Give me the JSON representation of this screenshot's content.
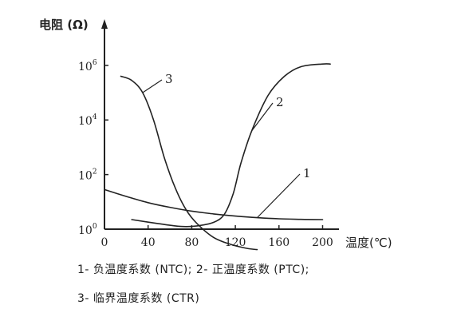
{
  "chart_data": {
    "type": "line",
    "ylabel": "电阻 (Ω)",
    "xlabel": "温度(℃)",
    "x_ticks": [
      0,
      40,
      80,
      120,
      160,
      200
    ],
    "y_ticks": [
      {
        "base": "10",
        "exp": "0"
      },
      {
        "base": "10",
        "exp": "2"
      },
      {
        "base": "10",
        "exp": "4"
      },
      {
        "base": "10",
        "exp": "6"
      }
    ],
    "xlim": [
      0,
      215
    ],
    "ylim_log10": [
      0,
      7.4
    ],
    "y_scale": "log",
    "grid": false,
    "series": [
      {
        "name": "1",
        "x": [
          0,
          20,
          40,
          60,
          80,
          100,
          120,
          140,
          160,
          180,
          200
        ],
        "log10_y": [
          1.45,
          1.2,
          0.97,
          0.8,
          0.66,
          0.56,
          0.48,
          0.42,
          0.38,
          0.36,
          0.35
        ]
      },
      {
        "name": "2",
        "x": [
          25,
          50,
          70,
          85,
          100,
          110,
          118,
          125,
          135,
          150,
          165,
          180,
          200,
          207
        ],
        "log10_y": [
          0.35,
          0.2,
          0.1,
          0.12,
          0.25,
          0.55,
          1.3,
          2.4,
          3.6,
          4.9,
          5.6,
          5.95,
          6.05,
          6.05
        ]
      },
      {
        "name": "3",
        "x": [
          15,
          25,
          35,
          45,
          55,
          65,
          75,
          85,
          100,
          115,
          130,
          140
        ],
        "log10_y": [
          5.6,
          5.45,
          5.0,
          4.0,
          2.6,
          1.5,
          0.7,
          0.2,
          -0.3,
          -0.55,
          -0.7,
          -0.75
        ]
      }
    ],
    "curve_labels": [
      "3",
      "2",
      "1"
    ]
  },
  "caption": {
    "line1": "1- 负温度系数 (NTC); 2- 正温度系数 (PTC);",
    "line2": "3- 临界温度系数 (CTR)"
  }
}
